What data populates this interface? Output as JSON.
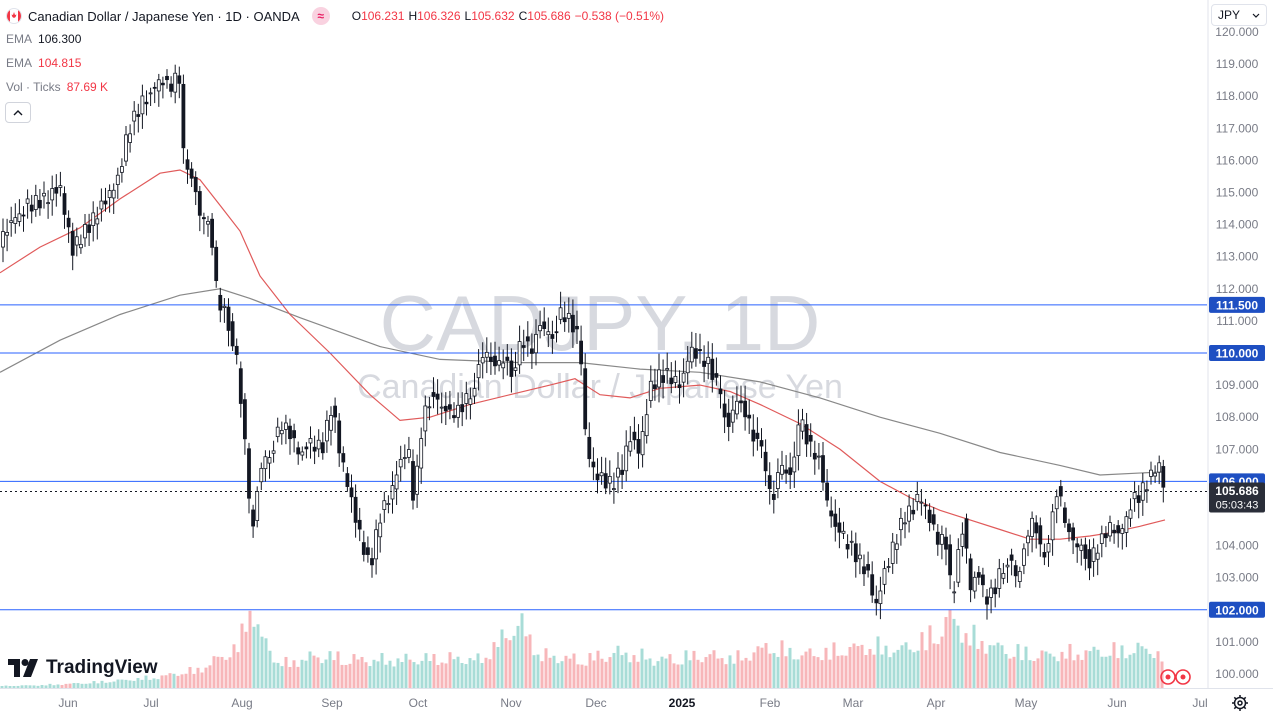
{
  "header": {
    "title": "Canadian Dollar / Japanese Yen · 1D · OANDA",
    "compare_glyph": "≈",
    "ohlc": [
      {
        "k": "O",
        "v": "106.231"
      },
      {
        "k": "H",
        "v": "106.326"
      },
      {
        "k": "L",
        "v": "105.632"
      },
      {
        "k": "C",
        "v": "105.686"
      },
      {
        "k": "",
        "v": "−0.538 (−0.51%)"
      }
    ]
  },
  "indicators": [
    {
      "name": "EMA",
      "value": "106.300",
      "color": "#787b86"
    },
    {
      "name": "EMA",
      "value": "104.815",
      "color": "#f23645"
    },
    {
      "name": "Vol · Ticks",
      "value": "87.69 K",
      "color": "#f23645"
    }
  ],
  "currency_selector": {
    "label": "JPY",
    "icon": "chevron-down-icon"
  },
  "watermark": {
    "symbol": "CADJPY, 1D",
    "description": "Canadian Dollar / Japanese Yen"
  },
  "branding": {
    "name": "TradingView"
  },
  "colors": {
    "up": "#26a69a",
    "down": "#f23645",
    "candle": "#131722",
    "level_line": "#2962ff",
    "level_label_bg": "#1e4fc2",
    "ema_fast": "#888888",
    "ema_slow": "#e05a5a",
    "vol_up": "#a8dcd7",
    "vol_down": "#f7b6b9"
  },
  "chart_data": {
    "type": "candlestick",
    "y_axis": {
      "min": 99.6,
      "max": 120.3,
      "ticks": [
        "100.000",
        "101.000",
        "102.000",
        "103.000",
        "104.000",
        "105.000",
        "106.000",
        "107.000",
        "108.000",
        "109.000",
        "110.000",
        "111.000",
        "112.000",
        "113.000",
        "114.000",
        "115.000",
        "116.000",
        "117.000",
        "118.000",
        "119.000",
        "120.000"
      ]
    },
    "x_axis": {
      "labels": [
        "Jun",
        "Jul",
        "Aug",
        "Sep",
        "Oct",
        "Nov",
        "Dec",
        "2025",
        "Feb",
        "Mar",
        "Apr",
        "May",
        "Jun",
        "Jul"
      ]
    },
    "horizontal_levels": [
      {
        "value": 111.5,
        "label": "111.500"
      },
      {
        "value": 110.0,
        "label": "110.000"
      },
      {
        "value": 106.0,
        "label": "106.000"
      },
      {
        "value": 102.0,
        "label": "102.000"
      }
    ],
    "last_price": {
      "value": 105.686,
      "label": "105.686",
      "countdown": "05:03:43"
    },
    "price_path": [
      [
        0,
        113.5
      ],
      [
        14,
        114.2
      ],
      [
        28,
        114.6
      ],
      [
        46,
        114.8
      ],
      [
        60,
        115.2
      ],
      [
        72,
        113.2
      ],
      [
        92,
        114.1
      ],
      [
        106,
        114.8
      ],
      [
        118,
        115.4
      ],
      [
        128,
        116.9
      ],
      [
        140,
        117.7
      ],
      [
        150,
        118.1
      ],
      [
        160,
        118.5
      ],
      [
        172,
        118.3
      ],
      [
        179,
        118.8
      ],
      [
        183,
        116.2
      ],
      [
        190,
        115.8
      ],
      [
        200,
        114.3
      ],
      [
        210,
        114.0
      ],
      [
        218,
        111.6
      ],
      [
        226,
        111.2
      ],
      [
        236,
        110.0
      ],
      [
        244,
        107.6
      ],
      [
        252,
        104.3
      ],
      [
        260,
        106.4
      ],
      [
        270,
        106.9
      ],
      [
        282,
        107.8
      ],
      [
        292,
        107.4
      ],
      [
        300,
        106.8
      ],
      [
        312,
        107.2
      ],
      [
        322,
        107.0
      ],
      [
        332,
        108.4
      ],
      [
        340,
        106.9
      ],
      [
        350,
        105.6
      ],
      [
        360,
        104.3
      ],
      [
        370,
        103.3
      ],
      [
        380,
        104.9
      ],
      [
        390,
        105.6
      ],
      [
        398,
        106.4
      ],
      [
        408,
        107.1
      ],
      [
        414,
        105.3
      ],
      [
        422,
        107.8
      ],
      [
        432,
        108.8
      ],
      [
        442,
        108.3
      ],
      [
        454,
        108.1
      ],
      [
        464,
        108.4
      ],
      [
        474,
        109.0
      ],
      [
        484,
        110.1
      ],
      [
        494,
        109.6
      ],
      [
        504,
        109.8
      ],
      [
        512,
        109.4
      ],
      [
        522,
        110.4
      ],
      [
        532,
        110.1
      ],
      [
        540,
        110.9
      ],
      [
        552,
        110.5
      ],
      [
        562,
        111.3
      ],
      [
        572,
        110.9
      ],
      [
        580,
        110.4
      ],
      [
        586,
        107.1
      ],
      [
        592,
        106.5
      ],
      [
        600,
        106.1
      ],
      [
        612,
        105.9
      ],
      [
        622,
        106.4
      ],
      [
        630,
        107.4
      ],
      [
        640,
        106.9
      ],
      [
        650,
        108.9
      ],
      [
        660,
        109.3
      ],
      [
        670,
        109.3
      ],
      [
        680,
        108.9
      ],
      [
        690,
        110.1
      ],
      [
        700,
        109.9
      ],
      [
        710,
        109.6
      ],
      [
        720,
        108.7
      ],
      [
        728,
        107.6
      ],
      [
        736,
        108.6
      ],
      [
        746,
        108.1
      ],
      [
        756,
        107.2
      ],
      [
        764,
        106.8
      ],
      [
        772,
        105.2
      ],
      [
        780,
        106.6
      ],
      [
        790,
        106.1
      ],
      [
        800,
        107.9
      ],
      [
        810,
        107.1
      ],
      [
        820,
        106.6
      ],
      [
        828,
        105.2
      ],
      [
        838,
        104.4
      ],
      [
        848,
        104.1
      ],
      [
        858,
        103.6
      ],
      [
        868,
        103.1
      ],
      [
        876,
        102.1
      ],
      [
        886,
        103.3
      ],
      [
        896,
        104.2
      ],
      [
        904,
        104.9
      ],
      [
        912,
        105.1
      ],
      [
        920,
        105.6
      ],
      [
        930,
        104.8
      ],
      [
        938,
        104.2
      ],
      [
        946,
        104.1
      ],
      [
        952,
        102.3
      ],
      [
        958,
        103.6
      ],
      [
        964,
        104.9
      ],
      [
        970,
        102.6
      ],
      [
        978,
        103.2
      ],
      [
        986,
        102.3
      ],
      [
        994,
        102.6
      ],
      [
        1002,
        103.3
      ],
      [
        1010,
        103.6
      ],
      [
        1018,
        102.9
      ],
      [
        1026,
        104.2
      ],
      [
        1034,
        104.9
      ],
      [
        1042,
        103.6
      ],
      [
        1050,
        104.4
      ],
      [
        1058,
        105.9
      ],
      [
        1066,
        104.6
      ],
      [
        1074,
        104.1
      ],
      [
        1082,
        103.9
      ],
      [
        1090,
        103.5
      ],
      [
        1100,
        104.1
      ],
      [
        1110,
        104.6
      ],
      [
        1120,
        104.3
      ],
      [
        1130,
        105.3
      ],
      [
        1140,
        105.6
      ],
      [
        1150,
        106.1
      ],
      [
        1158,
        106.6
      ],
      [
        1165,
        105.7
      ]
    ],
    "ema_fast": [
      [
        0,
        109.4
      ],
      [
        60,
        110.4
      ],
      [
        120,
        111.2
      ],
      [
        180,
        111.8
      ],
      [
        220,
        112.0
      ],
      [
        250,
        111.7
      ],
      [
        300,
        111.1
      ],
      [
        380,
        110.2
      ],
      [
        440,
        109.8
      ],
      [
        520,
        109.7
      ],
      [
        580,
        109.7
      ],
      [
        640,
        109.5
      ],
      [
        700,
        109.4
      ],
      [
        760,
        109.1
      ],
      [
        820,
        108.6
      ],
      [
        880,
        108.0
      ],
      [
        940,
        107.5
      ],
      [
        1000,
        106.9
      ],
      [
        1060,
        106.5
      ],
      [
        1100,
        106.2
      ],
      [
        1165,
        106.3
      ]
    ],
    "ema_slow": [
      [
        0,
        112.5
      ],
      [
        40,
        113.3
      ],
      [
        80,
        113.9
      ],
      [
        120,
        114.8
      ],
      [
        160,
        115.6
      ],
      [
        180,
        115.7
      ],
      [
        200,
        115.4
      ],
      [
        220,
        114.6
      ],
      [
        240,
        113.8
      ],
      [
        260,
        112.4
      ],
      [
        290,
        111.2
      ],
      [
        330,
        110.0
      ],
      [
        370,
        108.7
      ],
      [
        400,
        107.9
      ],
      [
        430,
        108.0
      ],
      [
        470,
        108.4
      ],
      [
        510,
        108.7
      ],
      [
        550,
        109.0
      ],
      [
        575,
        109.2
      ],
      [
        600,
        108.7
      ],
      [
        630,
        108.6
      ],
      [
        660,
        108.9
      ],
      [
        700,
        109.0
      ],
      [
        730,
        108.8
      ],
      [
        760,
        108.4
      ],
      [
        800,
        107.8
      ],
      [
        840,
        107.0
      ],
      [
        880,
        106.0
      ],
      [
        910,
        105.5
      ],
      [
        940,
        105.1
      ],
      [
        970,
        104.8
      ],
      [
        1000,
        104.5
      ],
      [
        1030,
        104.2
      ],
      [
        1060,
        104.2
      ],
      [
        1090,
        104.3
      ],
      [
        1110,
        104.4
      ],
      [
        1140,
        104.6
      ],
      [
        1165,
        104.8
      ]
    ],
    "volume_path": [
      [
        0,
        0.02
      ],
      [
        40,
        0.03
      ],
      [
        80,
        0.05
      ],
      [
        120,
        0.08
      ],
      [
        160,
        0.12
      ],
      [
        200,
        0.2
      ],
      [
        240,
        0.45
      ],
      [
        250,
        1.0
      ],
      [
        258,
        0.6
      ],
      [
        280,
        0.25
      ],
      [
        320,
        0.35
      ],
      [
        360,
        0.3
      ],
      [
        400,
        0.3
      ],
      [
        440,
        0.32
      ],
      [
        480,
        0.3
      ],
      [
        520,
        0.7
      ],
      [
        540,
        0.35
      ],
      [
        580,
        0.3
      ],
      [
        620,
        0.38
      ],
      [
        660,
        0.3
      ],
      [
        700,
        0.35
      ],
      [
        740,
        0.32
      ],
      [
        770,
        0.45
      ],
      [
        800,
        0.35
      ],
      [
        840,
        0.4
      ],
      [
        870,
        0.45
      ],
      [
        900,
        0.4
      ],
      [
        940,
        0.6
      ],
      [
        950,
        0.75
      ],
      [
        970,
        0.55
      ],
      [
        1000,
        0.42
      ],
      [
        1040,
        0.35
      ],
      [
        1080,
        0.38
      ],
      [
        1120,
        0.4
      ],
      [
        1150,
        0.42
      ],
      [
        1165,
        0.3
      ]
    ]
  }
}
